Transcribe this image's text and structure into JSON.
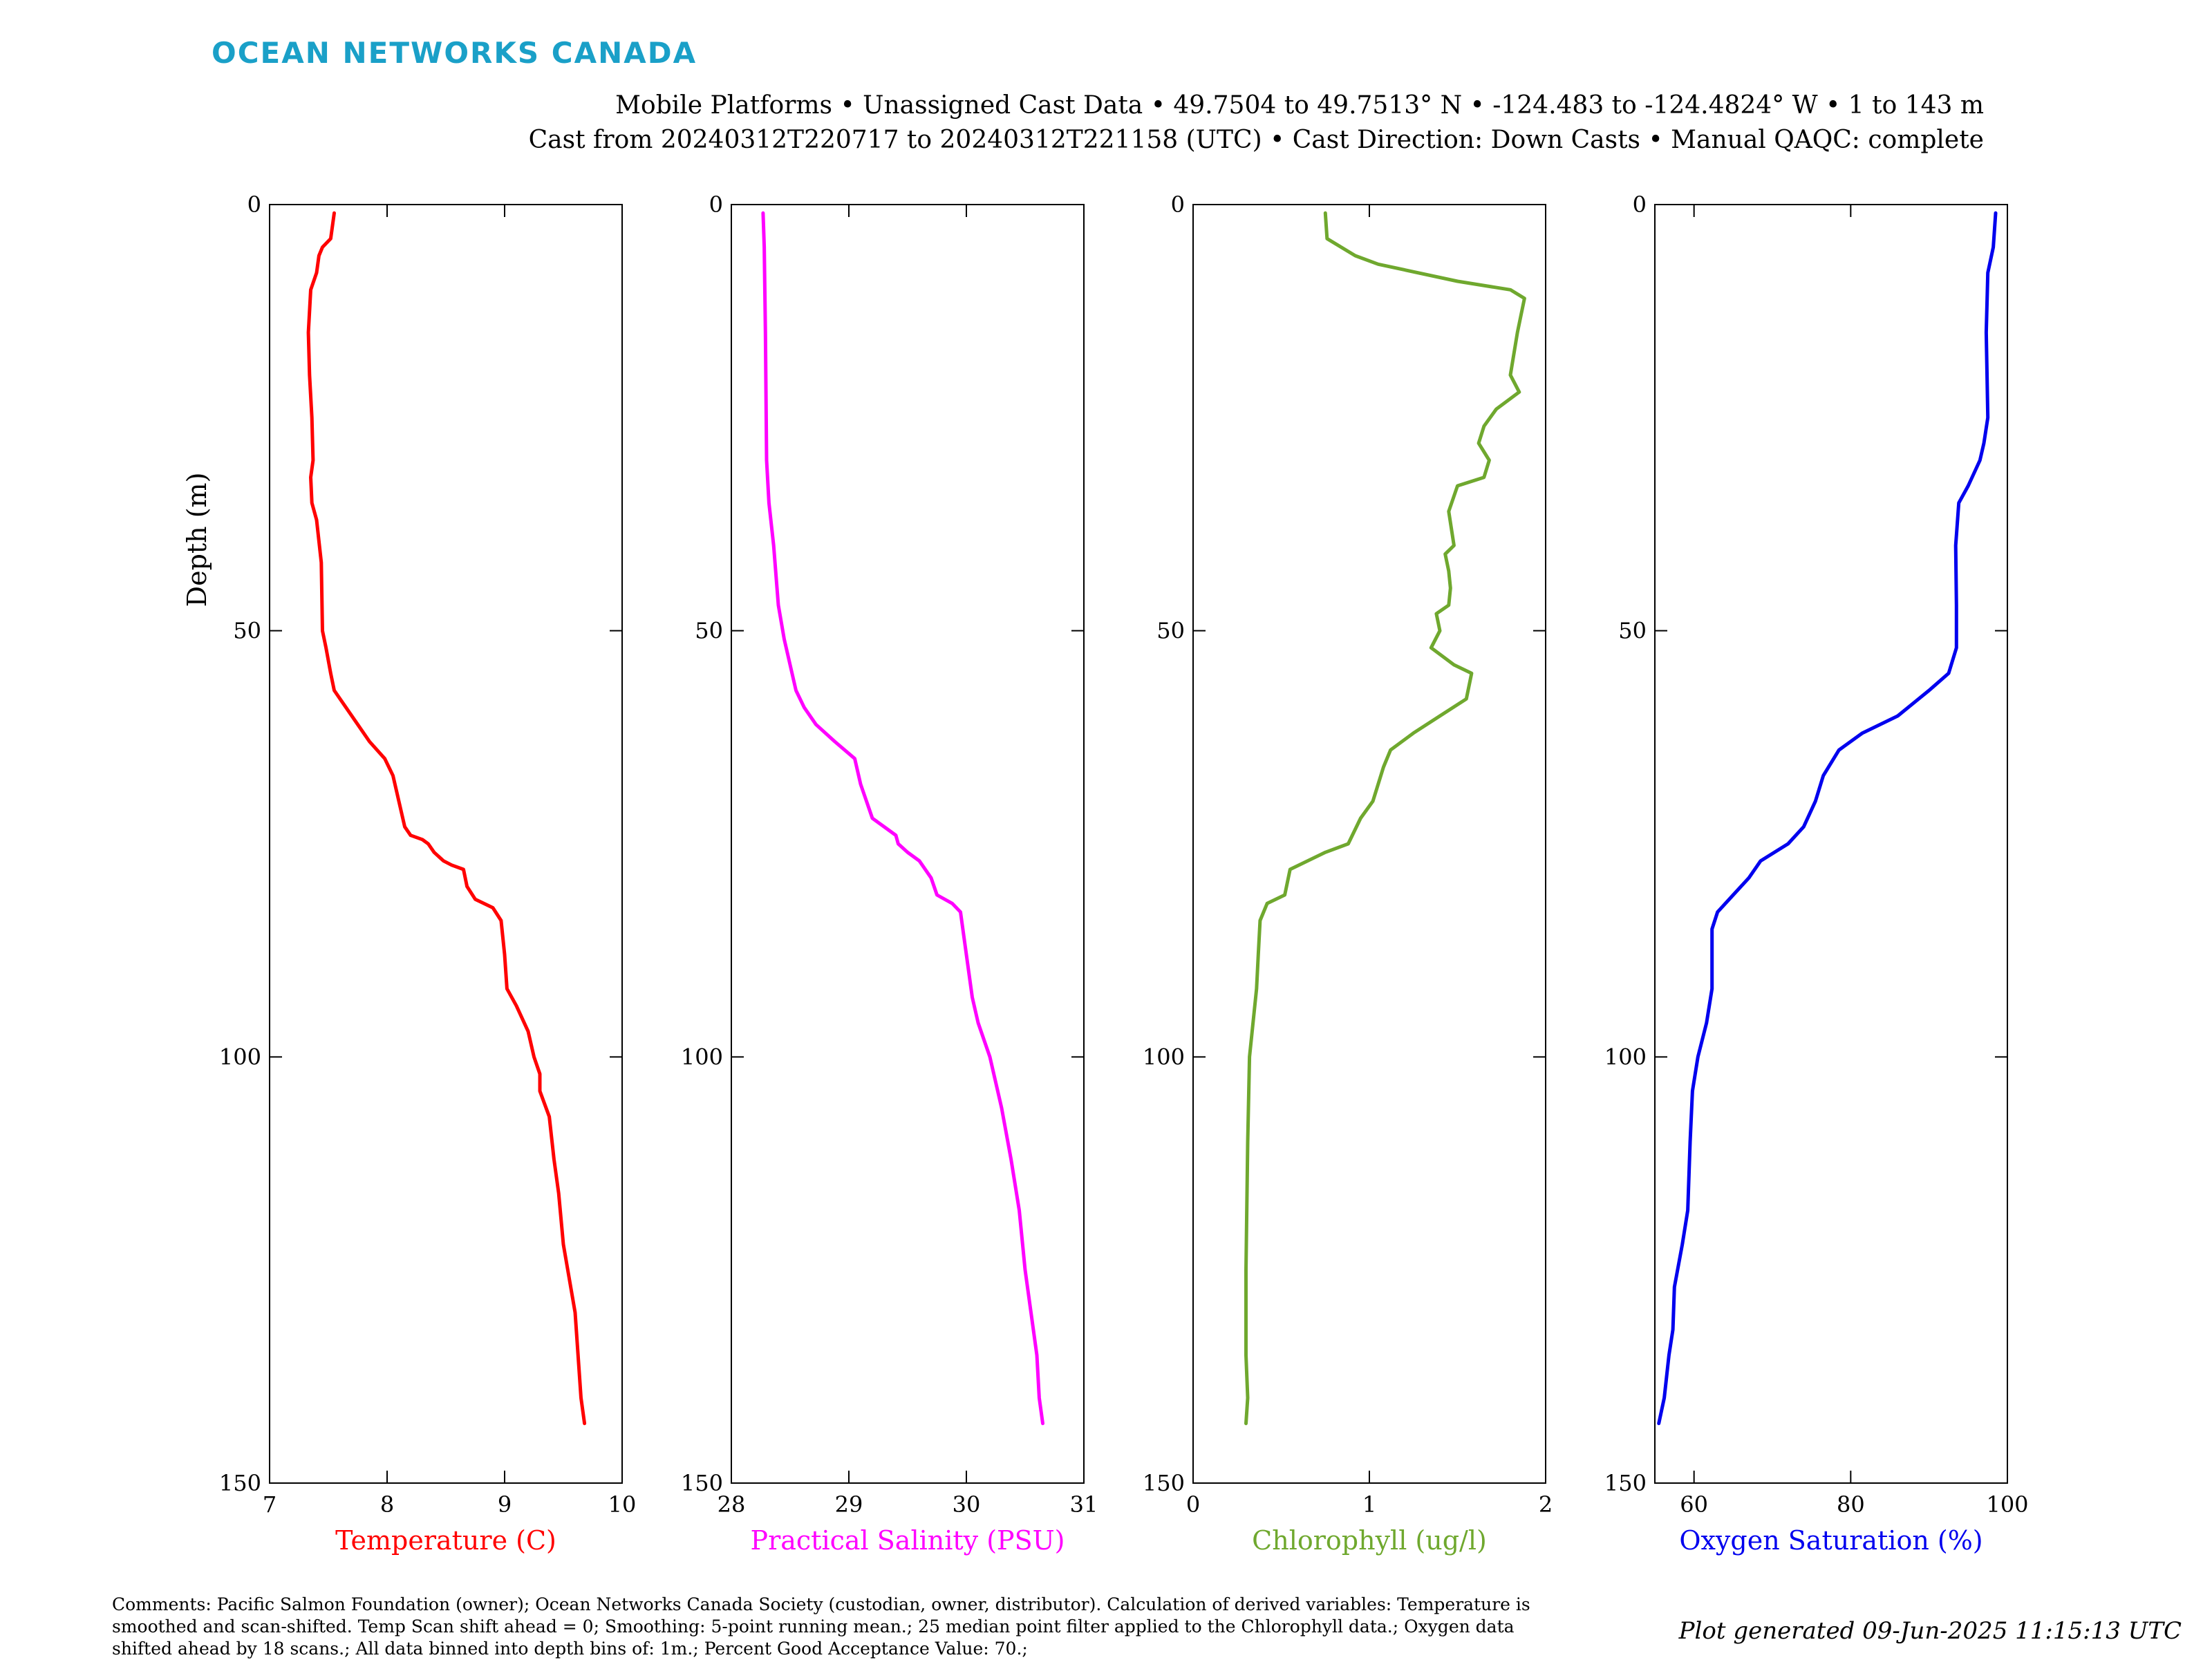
{
  "brand": "OCEAN NETWORKS CANADA",
  "header": {
    "line1": "Mobile Platforms • Unassigned Cast Data • 49.7504 to 49.7513° N • -124.483 to -124.4824° W • 1 to 143 m",
    "line2": "Cast from 20240312T220717 to 20240312T221158 (UTC) • Cast Direction: Down Casts • Manual QAQC: complete"
  },
  "footer": {
    "comments": "Comments: Pacific Salmon Foundation (owner); Ocean Networks Canada Society (custodian, owner, distributor). Calculation of derived variables: Temperature is smoothed and scan-shifted. Temp Scan shift ahead = 0; Smoothing: 5-point running mean.; 25 median point filter applied to the Chlorophyll data.; Oxygen data shifted ahead by 18 scans.; All data binned into depth bins of: 1m.; Percent Good Acceptance Value: 70.;",
    "generated": "Plot generated 09-Jun-2025 11:15:13 UTC"
  },
  "chart_data": [
    {
      "type": "line",
      "xlabel": "Temperature (C)",
      "ylabel": "Depth (m)",
      "color": "#ff0000",
      "xlim": [
        7,
        10
      ],
      "ylim": [
        0,
        150
      ],
      "y_reversed": true,
      "xticks": [
        7,
        8,
        9,
        10
      ],
      "yticks": [
        0,
        50,
        100,
        150
      ],
      "points": [
        [
          7.55,
          1
        ],
        [
          7.52,
          4
        ],
        [
          7.45,
          5
        ],
        [
          7.42,
          6
        ],
        [
          7.4,
          8
        ],
        [
          7.35,
          10
        ],
        [
          7.33,
          15
        ],
        [
          7.34,
          20
        ],
        [
          7.36,
          25
        ],
        [
          7.37,
          30
        ],
        [
          7.35,
          32
        ],
        [
          7.36,
          35
        ],
        [
          7.4,
          37
        ],
        [
          7.44,
          42
        ],
        [
          7.45,
          50
        ],
        [
          7.48,
          52
        ],
        [
          7.52,
          55
        ],
        [
          7.55,
          57
        ],
        [
          7.65,
          59
        ],
        [
          7.75,
          61
        ],
        [
          7.85,
          63
        ],
        [
          7.98,
          65
        ],
        [
          8.05,
          67
        ],
        [
          8.1,
          70
        ],
        [
          8.15,
          73
        ],
        [
          8.2,
          74
        ],
        [
          8.3,
          74.5
        ],
        [
          8.35,
          75
        ],
        [
          8.4,
          76
        ],
        [
          8.48,
          77
        ],
        [
          8.55,
          77.5
        ],
        [
          8.65,
          78
        ],
        [
          8.68,
          80
        ],
        [
          8.75,
          81.5
        ],
        [
          8.9,
          82.5
        ],
        [
          8.97,
          84
        ],
        [
          9.0,
          88
        ],
        [
          9.02,
          92
        ],
        [
          9.1,
          94
        ],
        [
          9.2,
          97
        ],
        [
          9.25,
          100
        ],
        [
          9.3,
          102
        ],
        [
          9.3,
          104
        ],
        [
          9.38,
          107
        ],
        [
          9.42,
          112
        ],
        [
          9.46,
          116
        ],
        [
          9.5,
          122
        ],
        [
          9.55,
          126
        ],
        [
          9.6,
          130
        ],
        [
          9.63,
          136
        ],
        [
          9.65,
          140
        ],
        [
          9.68,
          143
        ]
      ]
    },
    {
      "type": "line",
      "xlabel": "Practical Salinity (PSU)",
      "ylabel": "Depth (m)",
      "color": "#ff00ff",
      "xlim": [
        28,
        31
      ],
      "ylim": [
        0,
        150
      ],
      "y_reversed": true,
      "xticks": [
        28,
        29,
        30,
        31
      ],
      "yticks": [
        0,
        50,
        100,
        150
      ],
      "points": [
        [
          28.27,
          1
        ],
        [
          28.28,
          5
        ],
        [
          28.29,
          15
        ],
        [
          28.3,
          30
        ],
        [
          28.32,
          35
        ],
        [
          28.36,
          40
        ],
        [
          28.4,
          47
        ],
        [
          28.45,
          51
        ],
        [
          28.5,
          54
        ],
        [
          28.55,
          57
        ],
        [
          28.62,
          59
        ],
        [
          28.72,
          61
        ],
        [
          28.88,
          63
        ],
        [
          29.05,
          65
        ],
        [
          29.1,
          68
        ],
        [
          29.15,
          70
        ],
        [
          29.2,
          72
        ],
        [
          29.3,
          73
        ],
        [
          29.4,
          74
        ],
        [
          29.42,
          75
        ],
        [
          29.5,
          76
        ],
        [
          29.6,
          77
        ],
        [
          29.7,
          79
        ],
        [
          29.75,
          81
        ],
        [
          29.88,
          82
        ],
        [
          29.95,
          83
        ],
        [
          29.98,
          86
        ],
        [
          30.02,
          90
        ],
        [
          30.05,
          93
        ],
        [
          30.1,
          96
        ],
        [
          30.2,
          100
        ],
        [
          30.3,
          106
        ],
        [
          30.38,
          112
        ],
        [
          30.45,
          118
        ],
        [
          30.5,
          125
        ],
        [
          30.55,
          130
        ],
        [
          30.6,
          135
        ],
        [
          30.62,
          140
        ],
        [
          30.65,
          143
        ]
      ]
    },
    {
      "type": "line",
      "xlabel": "Chlorophyll (ug/l)",
      "ylabel": "Depth (m)",
      "color": "#6fa82e",
      "xlim": [
        0,
        2
      ],
      "ylim": [
        0,
        150
      ],
      "y_reversed": true,
      "xticks": [
        0,
        1,
        2
      ],
      "yticks": [
        0,
        50,
        100,
        150
      ],
      "points": [
        [
          0.75,
          1
        ],
        [
          0.76,
          4
        ],
        [
          0.92,
          6
        ],
        [
          1.05,
          7
        ],
        [
          1.5,
          9
        ],
        [
          1.8,
          10
        ],
        [
          1.88,
          11
        ],
        [
          1.86,
          13
        ],
        [
          1.84,
          15
        ],
        [
          1.8,
          20
        ],
        [
          1.85,
          22
        ],
        [
          1.72,
          24
        ],
        [
          1.65,
          26
        ],
        [
          1.62,
          28
        ],
        [
          1.68,
          30
        ],
        [
          1.65,
          32
        ],
        [
          1.5,
          33
        ],
        [
          1.45,
          36
        ],
        [
          1.48,
          40
        ],
        [
          1.43,
          41
        ],
        [
          1.45,
          43
        ],
        [
          1.46,
          45
        ],
        [
          1.45,
          47
        ],
        [
          1.38,
          48
        ],
        [
          1.4,
          50
        ],
        [
          1.35,
          52
        ],
        [
          1.48,
          54
        ],
        [
          1.58,
          55
        ],
        [
          1.55,
          58
        ],
        [
          1.4,
          60
        ],
        [
          1.25,
          62
        ],
        [
          1.12,
          64
        ],
        [
          1.08,
          66
        ],
        [
          1.02,
          70
        ],
        [
          0.95,
          72
        ],
        [
          0.88,
          75
        ],
        [
          0.75,
          76
        ],
        [
          0.55,
          78
        ],
        [
          0.52,
          81
        ],
        [
          0.42,
          82
        ],
        [
          0.38,
          84
        ],
        [
          0.37,
          88
        ],
        [
          0.36,
          92
        ],
        [
          0.34,
          96
        ],
        [
          0.32,
          100
        ],
        [
          0.31,
          110
        ],
        [
          0.3,
          125
        ],
        [
          0.3,
          135
        ],
        [
          0.31,
          140
        ],
        [
          0.3,
          143
        ]
      ]
    },
    {
      "type": "line",
      "xlabel": "Oxygen Saturation (%)",
      "ylabel": "Depth (m)",
      "color": "#0000ee",
      "xlim": [
        55,
        100
      ],
      "ylim": [
        0,
        150
      ],
      "y_reversed": true,
      "xticks": [
        60,
        80,
        100
      ],
      "yticks": [
        0,
        50,
        100,
        150
      ],
      "points": [
        [
          98.5,
          1
        ],
        [
          98.2,
          5
        ],
        [
          97.5,
          8
        ],
        [
          97.3,
          15
        ],
        [
          97.5,
          25
        ],
        [
          97,
          28
        ],
        [
          96.5,
          30
        ],
        [
          95,
          33
        ],
        [
          93.8,
          35
        ],
        [
          93.4,
          40
        ],
        [
          93.5,
          47
        ],
        [
          93.5,
          52
        ],
        [
          92.5,
          55
        ],
        [
          90,
          57
        ],
        [
          86,
          60
        ],
        [
          81.5,
          62
        ],
        [
          78.5,
          64
        ],
        [
          76.5,
          67
        ],
        [
          75.5,
          70
        ],
        [
          74,
          73
        ],
        [
          72,
          75
        ],
        [
          68.5,
          77
        ],
        [
          67,
          79
        ],
        [
          65,
          81
        ],
        [
          63,
          83
        ],
        [
          62.3,
          85
        ],
        [
          62.3,
          92
        ],
        [
          61.6,
          96
        ],
        [
          60.5,
          100
        ],
        [
          59.8,
          104
        ],
        [
          59.5,
          110
        ],
        [
          59.2,
          118
        ],
        [
          58.5,
          122
        ],
        [
          57.5,
          127
        ],
        [
          57.3,
          132
        ],
        [
          56.8,
          135
        ],
        [
          56.2,
          140
        ],
        [
          55.5,
          143
        ]
      ]
    }
  ]
}
